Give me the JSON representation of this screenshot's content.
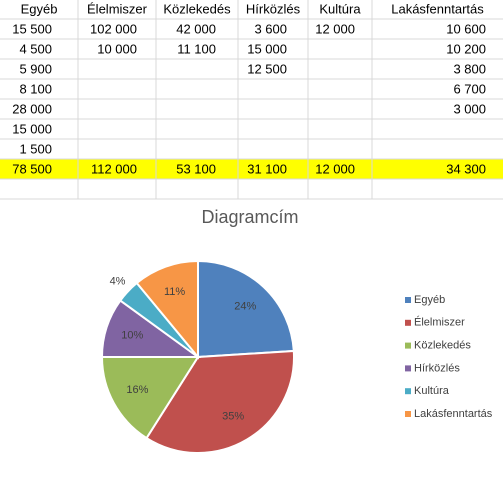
{
  "table": {
    "header": [
      "Egyéb",
      "Élelmiszer",
      "Közlekedés",
      "Hírközlés",
      "Kultúra",
      "Lakásfenntartás"
    ],
    "rows": [
      [
        "15 500",
        "102 000",
        "42 000",
        "3 600",
        "12 000",
        "10 600"
      ],
      [
        "4 500",
        "10 000",
        "11 100",
        "15 000",
        null,
        "10 200"
      ],
      [
        "5 900",
        null,
        null,
        "12 500",
        null,
        "3 800"
      ],
      [
        "8 100",
        null,
        null,
        null,
        null,
        "6 700"
      ],
      [
        "28 000",
        null,
        null,
        null,
        null,
        "3 000"
      ],
      [
        "15 000",
        null,
        null,
        null,
        null,
        null
      ],
      [
        "1 500",
        null,
        null,
        null,
        null,
        null
      ]
    ],
    "total": [
      "78 500",
      "112 000",
      "53 100",
      "31 100",
      "12 000",
      "34 300"
    ],
    "total_color": "#ffff00"
  },
  "chart_data": {
    "type": "pie",
    "title": "Diagramcím",
    "categories": [
      "Egyéb",
      "Élelmiszer",
      "Közlekedés",
      "Hírközlés",
      "Kultúra",
      "Lakásfenntartás"
    ],
    "values": [
      24,
      35,
      16,
      10,
      4,
      11
    ],
    "value_labels": [
      "24%",
      "35%",
      "16%",
      "10%",
      "4%",
      "11%"
    ],
    "colors": [
      "#4f81bd",
      "#c0504d",
      "#9bbb59",
      "#8064a2",
      "#4bacc6",
      "#f79646"
    ],
    "legend": "right"
  }
}
